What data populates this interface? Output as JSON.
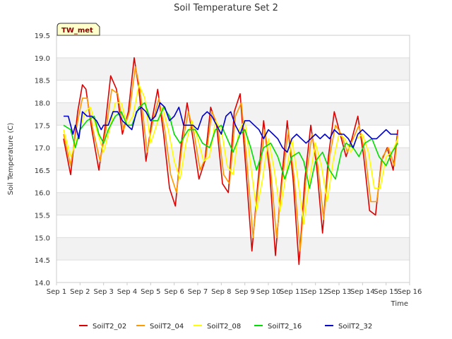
{
  "chart_data": {
    "type": "line",
    "title": "Soil Temperature Set 2",
    "xlabel": "Time",
    "ylabel": "Soil Temperature (C)",
    "site_label": "TW_met",
    "xlim": [
      0,
      15
    ],
    "ylim": [
      14.0,
      19.5
    ],
    "y_ticks": [
      "14.0",
      "14.5",
      "15.0",
      "15.5",
      "16.0",
      "16.5",
      "17.0",
      "17.5",
      "18.0",
      "18.5",
      "19.0",
      "19.5"
    ],
    "x_ticks": [
      "Sep 1",
      "Sep 2",
      "Sep 3",
      "Sep 4",
      "Sep 5",
      "Sep 6",
      "Sep 7",
      "Sep 8",
      "Sep 9",
      "Sep 10",
      "Sep 11",
      "Sep 12",
      "Sep 13",
      "Sep 14",
      "Sep 15",
      "Sep 16"
    ],
    "grid": true,
    "legend_position": "bottom",
    "series": [
      {
        "name": "SoilT2_02",
        "color": "#dd0000",
        "x": [
          0.3,
          0.6,
          0.9,
          1.1,
          1.25,
          1.5,
          1.8,
          2.05,
          2.3,
          2.55,
          2.8,
          3.05,
          3.3,
          3.5,
          3.8,
          4.05,
          4.3,
          4.55,
          4.8,
          5.05,
          5.3,
          5.55,
          5.8,
          6.05,
          6.3,
          6.55,
          6.8,
          7.05,
          7.3,
          7.55,
          7.8,
          8.05,
          8.3,
          8.55,
          8.8,
          9.05,
          9.3,
          9.55,
          9.8,
          10.05,
          10.3,
          10.55,
          10.8,
          11.05,
          11.3,
          11.55,
          11.8,
          12.05,
          12.3,
          12.55,
          12.8,
          13.05,
          13.3,
          13.55,
          13.8,
          14.05,
          14.3,
          14.5
        ],
        "y": [
          17.2,
          16.4,
          17.8,
          18.4,
          18.3,
          17.4,
          16.5,
          17.4,
          18.6,
          18.3,
          17.3,
          17.8,
          19.0,
          18.3,
          16.7,
          17.6,
          18.3,
          17.3,
          16.1,
          15.7,
          17.1,
          18.0,
          17.2,
          16.3,
          16.7,
          17.9,
          17.5,
          16.2,
          16.0,
          17.8,
          18.2,
          16.5,
          14.7,
          16.2,
          17.6,
          16.5,
          14.6,
          16.2,
          17.6,
          16.3,
          14.4,
          16.3,
          17.5,
          16.6,
          15.1,
          16.8,
          17.8,
          17.3,
          16.8,
          17.2,
          17.7,
          16.8,
          15.6,
          15.5,
          16.7,
          17.0,
          16.5,
          17.4
        ]
      },
      {
        "name": "SoilT2_04",
        "color": "#ff9900",
        "x": [
          0.3,
          0.6,
          0.9,
          1.1,
          1.3,
          1.55,
          1.85,
          2.1,
          2.35,
          2.6,
          2.85,
          3.1,
          3.35,
          3.55,
          3.85,
          4.1,
          4.35,
          4.6,
          4.85,
          5.1,
          5.35,
          5.6,
          5.85,
          6.1,
          6.35,
          6.6,
          6.85,
          7.1,
          7.35,
          7.6,
          7.85,
          8.1,
          8.35,
          8.6,
          8.85,
          9.1,
          9.35,
          9.6,
          9.85,
          10.1,
          10.35,
          10.6,
          10.85,
          11.1,
          11.35,
          11.6,
          11.85,
          12.1,
          12.35,
          12.6,
          12.85,
          13.1,
          13.35,
          13.6,
          13.85,
          14.1,
          14.35,
          14.5
        ],
        "y": [
          17.3,
          16.6,
          17.6,
          18.1,
          18.1,
          17.4,
          16.7,
          17.4,
          18.3,
          18.2,
          17.4,
          17.8,
          18.8,
          18.3,
          16.9,
          17.6,
          18.1,
          17.4,
          16.4,
          16.0,
          17.1,
          17.8,
          17.3,
          16.5,
          16.8,
          17.8,
          17.5,
          16.4,
          16.2,
          17.7,
          18.0,
          16.6,
          15.0,
          16.3,
          17.4,
          16.5,
          15.0,
          16.3,
          17.4,
          16.3,
          14.7,
          16.3,
          17.3,
          16.6,
          15.4,
          16.8,
          17.5,
          17.3,
          16.9,
          17.2,
          17.5,
          16.9,
          15.8,
          15.8,
          16.8,
          17.0,
          16.6,
          17.3
        ]
      },
      {
        "name": "SoilT2_08",
        "color": "#ffff00",
        "x": [
          0.3,
          0.6,
          0.95,
          1.2,
          1.45,
          1.7,
          2.0,
          2.25,
          2.5,
          2.75,
          3.0,
          3.25,
          3.5,
          3.75,
          4.0,
          4.25,
          4.5,
          4.75,
          5.0,
          5.25,
          5.5,
          5.75,
          6.0,
          6.25,
          6.5,
          6.75,
          7.0,
          7.25,
          7.5,
          7.75,
          8.0,
          8.25,
          8.5,
          8.75,
          9.0,
          9.25,
          9.5,
          9.75,
          10.0,
          10.25,
          10.5,
          10.75,
          11.0,
          11.25,
          11.5,
          11.75,
          12.0,
          12.25,
          12.5,
          12.75,
          13.0,
          13.25,
          13.5,
          13.75,
          14.0,
          14.25,
          14.5
        ],
        "y": [
          17.4,
          16.8,
          17.3,
          17.8,
          17.9,
          17.4,
          16.9,
          17.4,
          18.0,
          18.0,
          17.5,
          17.7,
          18.4,
          18.1,
          17.1,
          17.5,
          17.9,
          17.4,
          16.7,
          16.3,
          17.1,
          17.6,
          17.2,
          16.7,
          16.8,
          17.6,
          17.4,
          16.6,
          16.4,
          17.4,
          17.6,
          16.6,
          15.6,
          16.3,
          17.2,
          16.5,
          15.6,
          16.4,
          17.2,
          16.3,
          15.3,
          16.3,
          17.1,
          16.6,
          15.8,
          16.7,
          17.3,
          17.2,
          16.9,
          17.2,
          17.3,
          16.9,
          16.1,
          16.1,
          16.8,
          16.9,
          17.2
        ]
      },
      {
        "name": "SoilT2_16",
        "color": "#00dd00",
        "x": [
          0.3,
          0.6,
          0.8,
          1.0,
          1.3,
          1.6,
          1.8,
          2.0,
          2.2,
          2.5,
          2.75,
          3.0,
          3.2,
          3.5,
          3.75,
          4.0,
          4.3,
          4.55,
          4.8,
          5.0,
          5.25,
          5.6,
          5.9,
          6.2,
          6.5,
          6.75,
          7.0,
          7.25,
          7.5,
          7.8,
          8.0,
          8.25,
          8.5,
          8.8,
          9.1,
          9.4,
          9.7,
          10.0,
          10.3,
          10.5,
          10.75,
          11.0,
          11.3,
          11.6,
          11.85,
          12.1,
          12.3,
          12.6,
          12.85,
          13.1,
          13.4,
          13.7,
          14.0,
          14.25,
          14.5
        ],
        "y": [
          17.5,
          17.4,
          17.0,
          17.4,
          17.6,
          17.7,
          17.3,
          17.1,
          17.4,
          17.7,
          17.8,
          17.5,
          17.5,
          17.9,
          18.0,
          17.6,
          17.6,
          17.9,
          17.7,
          17.3,
          17.1,
          17.4,
          17.4,
          17.1,
          17.0,
          17.4,
          17.5,
          17.2,
          16.9,
          17.3,
          17.4,
          17.0,
          16.5,
          17.0,
          17.1,
          16.8,
          16.3,
          16.8,
          16.9,
          16.7,
          16.1,
          16.7,
          16.9,
          16.5,
          16.3,
          16.9,
          17.1,
          17.0,
          16.8,
          17.1,
          17.2,
          16.8,
          16.6,
          16.9,
          17.1
        ]
      },
      {
        "name": "SoilT2_32",
        "color": "#0000cc",
        "x": [
          0.3,
          0.5,
          0.7,
          0.8,
          0.95,
          1.1,
          1.3,
          1.5,
          1.7,
          1.9,
          2.0,
          2.2,
          2.4,
          2.6,
          2.8,
          3.0,
          3.2,
          3.4,
          3.6,
          3.8,
          4.0,
          4.2,
          4.4,
          4.6,
          4.8,
          5.0,
          5.2,
          5.4,
          5.6,
          5.8,
          6.0,
          6.2,
          6.4,
          6.6,
          6.8,
          7.0,
          7.2,
          7.4,
          7.6,
          7.8,
          8.0,
          8.2,
          8.4,
          8.6,
          8.8,
          9.0,
          9.2,
          9.4,
          9.6,
          9.8,
          10.0,
          10.2,
          10.4,
          10.6,
          10.8,
          11.0,
          11.2,
          11.4,
          11.6,
          11.8,
          12.0,
          12.2,
          12.4,
          12.6,
          12.8,
          13.0,
          13.2,
          13.4,
          13.6,
          13.8,
          14.0,
          14.2,
          14.4,
          14.5
        ],
        "y": [
          17.7,
          17.7,
          17.3,
          17.5,
          17.2,
          17.8,
          17.7,
          17.7,
          17.6,
          17.4,
          17.5,
          17.5,
          17.8,
          17.8,
          17.6,
          17.5,
          17.4,
          17.8,
          17.9,
          17.8,
          17.6,
          17.7,
          18.0,
          17.9,
          17.6,
          17.7,
          17.9,
          17.5,
          17.5,
          17.5,
          17.4,
          17.7,
          17.8,
          17.7,
          17.5,
          17.3,
          17.7,
          17.8,
          17.5,
          17.3,
          17.6,
          17.6,
          17.5,
          17.4,
          17.2,
          17.4,
          17.3,
          17.2,
          17.0,
          16.9,
          17.2,
          17.3,
          17.2,
          17.1,
          17.2,
          17.3,
          17.2,
          17.3,
          17.2,
          17.4,
          17.3,
          17.3,
          17.2,
          17.0,
          17.3,
          17.4,
          17.3,
          17.2,
          17.2,
          17.3,
          17.4,
          17.3,
          17.3,
          17.3
        ]
      }
    ]
  }
}
